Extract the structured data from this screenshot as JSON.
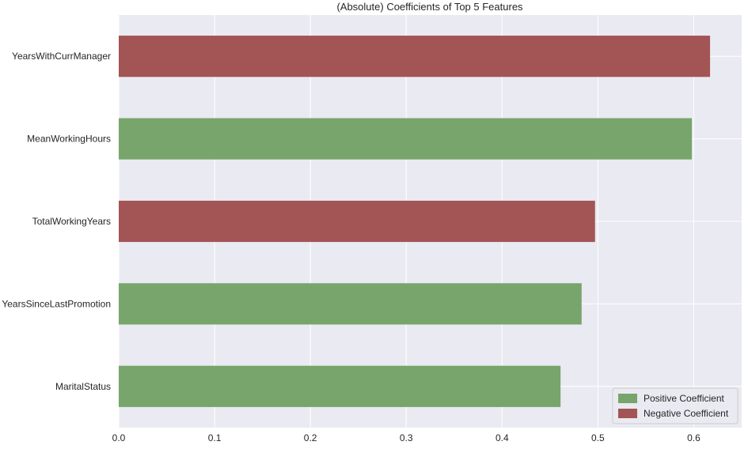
{
  "chart_data": {
    "type": "bar",
    "orientation": "horizontal",
    "title": "(Absolute) Coefficients of Top 5 Features",
    "xlabel": "",
    "ylabel": "",
    "categories": [
      "YearsWithCurrManager",
      "MeanWorkingHours",
      "TotalWorkingYears",
      "YearsSinceLastPromotion",
      "MaritalStatus"
    ],
    "values": [
      0.617,
      0.598,
      0.497,
      0.483,
      0.461
    ],
    "signs": [
      "negative",
      "positive",
      "negative",
      "positive",
      "positive"
    ],
    "xlim": [
      0,
      0.65
    ],
    "xticks": [
      0.0,
      0.1,
      0.2,
      0.3,
      0.4,
      0.5,
      0.6
    ],
    "xtick_labels": [
      "0.0",
      "0.1",
      "0.2",
      "0.3",
      "0.4",
      "0.5",
      "0.6"
    ],
    "grid": true,
    "legend": {
      "placement": "lower-right",
      "entries": [
        {
          "label": "Positive Coefficient",
          "color": "#77a56b"
        },
        {
          "label": "Negative Coefficient",
          "color": "#a35454"
        }
      ]
    },
    "colors": {
      "positive": "#77a56b",
      "negative": "#a35454",
      "background": "#eaeaf2",
      "grid": "#ffffff"
    }
  }
}
